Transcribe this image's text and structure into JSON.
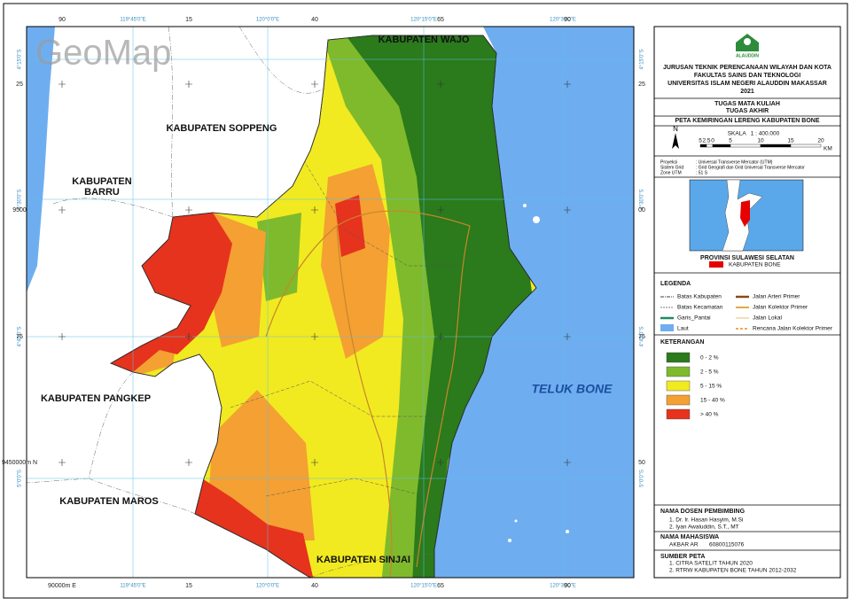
{
  "map": {
    "watermark": "GeoMap",
    "labels": [
      {
        "text": "KABUPATEN WAJO"
      },
      {
        "text": "KABUPATEN SOPPENG"
      },
      {
        "text": "KABUPATEN"
      },
      {
        "text": "BARRU"
      },
      {
        "text": "KABUPATEN PANGKEP"
      },
      {
        "text": "KABUPATEN MAROS"
      },
      {
        "text": "KABUPATEN SINJAI"
      },
      {
        "text": "TELUK BONE"
      }
    ],
    "grid": {
      "top": [
        "90",
        "119°45'0\"E",
        "15",
        "120°0'0\"E",
        "40",
        "120°15'0\"E",
        "65",
        "120°30'0\"E",
        "90"
      ],
      "bottom": [
        "90000m E",
        "119°45'0\"E",
        "15",
        "120°0'0\"E",
        "40",
        "120°15'0\"E",
        "65",
        "120°30'0\"E",
        "90"
      ],
      "left": [
        "4°15'0\"S",
        "25",
        "4°30'0\"S",
        "9500",
        "4°45'0\"S",
        "75",
        "5°0'0\"S",
        "9450000m N"
      ],
      "right": [
        "4°15'0\"S",
        "25",
        "4°30'0\"S",
        "00",
        "4°45'0\"S",
        "75",
        "5°0'0\"S",
        "50"
      ]
    }
  },
  "panel": {
    "logo": "ALAUDDIN",
    "institution": [
      "JURUSAN TEKNIK PERENCANAAN WILAYAH DAN KOTA",
      "FAKULTAS SAINS DAN TEKNOLOGI",
      "UNIVERSITAS ISLAM NEGERI ALAUDDIN MAKASSAR",
      "2021"
    ],
    "course": [
      "TUGAS MATA KULIAH",
      "TUGAS AKHIR"
    ],
    "title": "PETA KEMIRINGAN LERENG KABUPATEN BONE",
    "north": "N",
    "scale": "SKALA   1 : 400.000",
    "scale_ticks": [
      "5",
      "2.5",
      "0",
      "5",
      "10",
      "15",
      "20"
    ],
    "scale_unit": "KM",
    "projection": [
      [
        "Proyeksi",
        ": Universal Transverse Mercator (UTM)"
      ],
      [
        "Sistem Grid",
        ": Grid Geografi dan Grid Universal Transverse Mercator"
      ],
      [
        "Zone UTM",
        ": 51 S"
      ]
    ],
    "inset_title": "PROVINSI SULAWESI SELATAN",
    "inset_legend": "KABUPATEN BONE",
    "legend_title": "LEGENDA",
    "legend": [
      "Batas Kabupaten",
      "Batas Kecamatan",
      "Garis_Pantai",
      "Laut",
      "Jalan Arteri Primer",
      "Jalan Kolektor Primer",
      "Jalan Lokal",
      "Rencana Jalan Kolektor Primer"
    ],
    "classes_title": "KETERANGAN",
    "classes": [
      {
        "label": "0 - 2 %",
        "color": "#2b7a1c"
      },
      {
        "label": "2 - 5 %",
        "color": "#7fba2c"
      },
      {
        "label": "5 - 15 %",
        "color": "#f1ea20"
      },
      {
        "label": "15 - 40 %",
        "color": "#f4a033"
      },
      {
        "label": "> 40 %",
        "color": "#e6331d"
      }
    ],
    "supervisors_title": "NAMA DOSEN PEMBIMBING",
    "supervisors": [
      "1. Dr. Ir. Hasan Hasyim, M.Si",
      "2. Iyan Awaluddin, S.T., MT"
    ],
    "student_title": "NAMA MAHASISWA",
    "student": [
      "AKBAR AR",
      "60800115076"
    ],
    "sources_title": "SUMBER PETA",
    "sources": [
      "1. CITRA SATELIT TAHUN 2020",
      "2. RTRW KABUPATEN BONE TAHUN 2012-2032"
    ]
  }
}
